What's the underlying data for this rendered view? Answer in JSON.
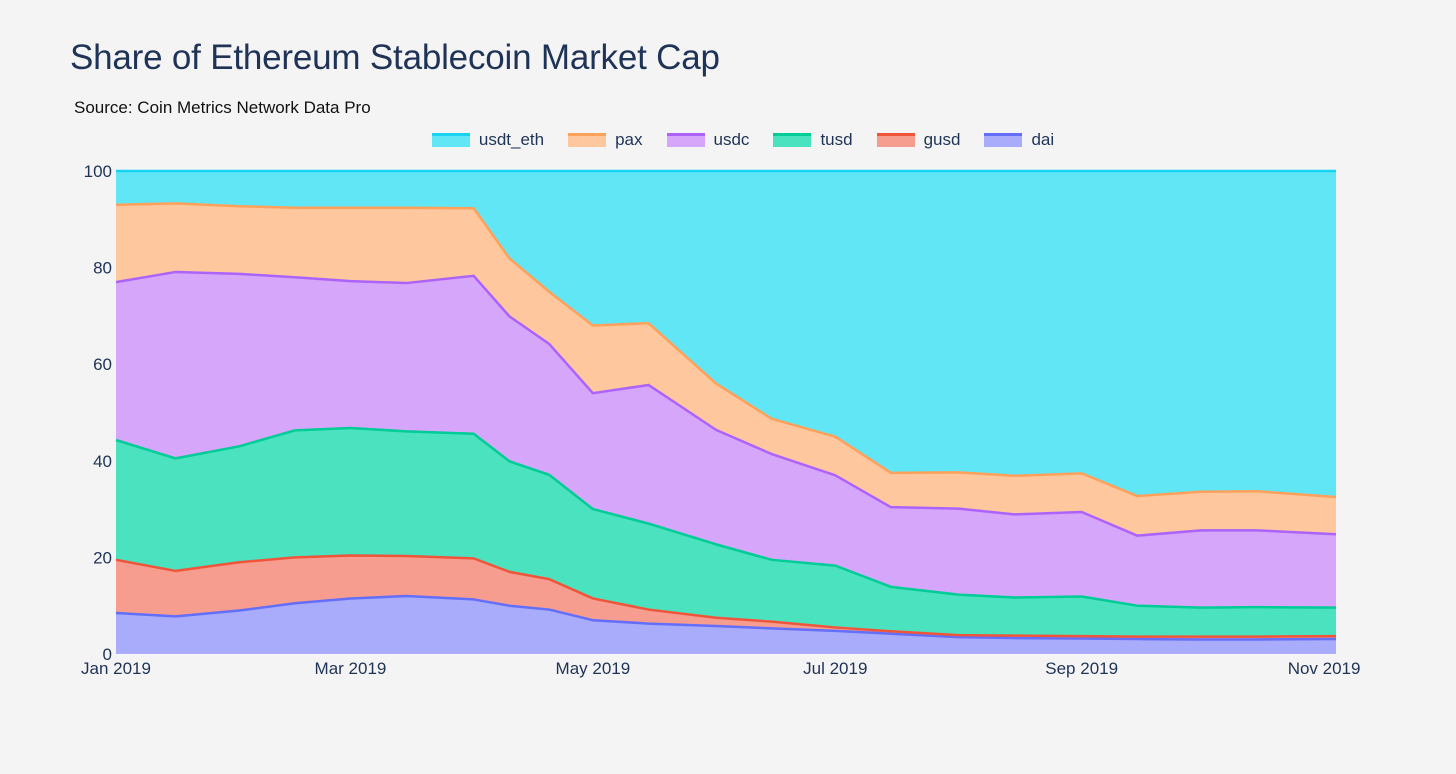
{
  "title": "Share of Ethereum Stablecoin Market Cap",
  "subtitle": "Source: Coin Metrics Network Data Pro",
  "chart_data": {
    "type": "area",
    "stacked": true,
    "grid": true,
    "legend_position": "top-center",
    "x_ticks": [
      "Jan 2019",
      "Mar 2019",
      "May 2019",
      "Jul 2019",
      "Sep 2019",
      "Nov 2019"
    ],
    "x_tick_dates": [
      "2019-01-01",
      "2019-03-01",
      "2019-05-01",
      "2019-07-01",
      "2019-09-01",
      "2019-11-01"
    ],
    "xlim": [
      "2019-01-01",
      "2019-11-04"
    ],
    "ylim": [
      0,
      100
    ],
    "y_ticks": [
      0,
      20,
      40,
      60,
      80,
      100
    ],
    "x": [
      "2019-01-01",
      "2019-01-16",
      "2019-02-01",
      "2019-02-15",
      "2019-03-01",
      "2019-03-15",
      "2019-04-01",
      "2019-04-10",
      "2019-04-20",
      "2019-05-01",
      "2019-05-15",
      "2019-06-01",
      "2019-06-15",
      "2019-07-01",
      "2019-07-15",
      "2019-08-01",
      "2019-08-15",
      "2019-09-01",
      "2019-09-15",
      "2019-10-01",
      "2019-10-15",
      "2019-11-04"
    ],
    "series": [
      {
        "name": "dai",
        "color": "#636efa",
        "fill": "#a8acfa",
        "values": [
          8.5,
          7.8,
          9.0,
          10.5,
          11.5,
          12.0,
          11.3,
          10.0,
          9.2,
          7.0,
          6.3,
          5.8,
          5.3,
          4.8,
          4.2,
          3.5,
          3.3,
          3.2,
          3.1,
          3.0,
          3.0,
          3.1
        ]
      },
      {
        "name": "gusd",
        "color": "#ef553b",
        "fill": "#f79d8f",
        "values": [
          11.0,
          9.4,
          10.0,
          9.5,
          8.9,
          8.3,
          8.5,
          7.0,
          6.3,
          4.5,
          2.9,
          1.7,
          1.4,
          0.7,
          0.5,
          0.4,
          0.5,
          0.5,
          0.5,
          0.6,
          0.6,
          0.6
        ]
      },
      {
        "name": "tusd",
        "color": "#00cc96",
        "fill": "#4be2c0",
        "values": [
          24.8,
          23.3,
          24.0,
          26.3,
          26.4,
          25.8,
          25.8,
          22.9,
          21.6,
          18.5,
          17.8,
          15.2,
          12.8,
          12.8,
          9.2,
          8.4,
          7.9,
          8.2,
          6.4,
          6.0,
          6.1,
          5.9
        ]
      },
      {
        "name": "usdc",
        "color": "#ab63fa",
        "fill": "#d6a6fb",
        "values": [
          32.7,
          38.6,
          35.7,
          31.7,
          30.4,
          30.7,
          32.7,
          30.0,
          27.1,
          24.0,
          28.7,
          23.7,
          21.9,
          18.7,
          16.5,
          17.8,
          17.2,
          17.5,
          14.5,
          16.0,
          15.9,
          15.2
        ]
      },
      {
        "name": "pax",
        "color": "#ffa15a",
        "fill": "#fec79e",
        "values": [
          16.0,
          14.2,
          14.0,
          14.4,
          15.2,
          15.6,
          14.0,
          12.0,
          10.8,
          14.0,
          12.8,
          9.6,
          7.3,
          8.0,
          7.1,
          7.5,
          8.0,
          8.0,
          8.2,
          8.0,
          8.1,
          7.7
        ]
      },
      {
        "name": "usdt_eth",
        "color": "#19d3f3",
        "fill": "#60e6f5",
        "values": [
          7.0,
          6.7,
          7.3,
          7.6,
          7.6,
          7.6,
          7.7,
          18.1,
          25.0,
          32.0,
          31.5,
          44.0,
          51.3,
          55.0,
          62.5,
          62.4,
          63.1,
          62.6,
          67.3,
          66.4,
          66.3,
          67.5
        ]
      }
    ]
  }
}
